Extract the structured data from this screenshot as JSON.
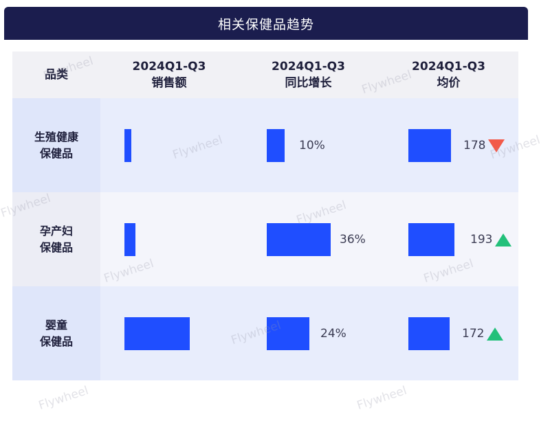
{
  "title": "相关保健品趋势",
  "watermark": "Flywheel",
  "header": {
    "category": "品类",
    "columns": [
      {
        "line1": "2024Q1-Q3",
        "line2": "销售额"
      },
      {
        "line1": "2024Q1-Q3",
        "line2": "同比增长"
      },
      {
        "line1": "2024Q1-Q3",
        "line2": "均价"
      }
    ]
  },
  "rows": [
    {
      "line1": "生殖健康",
      "line2": "保健品",
      "growth_label": "10%",
      "price_label": "178"
    },
    {
      "line1": "孕产妇",
      "line2": "保健品",
      "growth_label": "36%",
      "price_label": "193"
    },
    {
      "line1": "婴童",
      "line2": "保健品",
      "growth_label": "24%",
      "price_label": "172"
    }
  ],
  "chart_data": {
    "type": "table",
    "title": "相关保健品趋势",
    "categories": [
      "生殖健康保健品",
      "孕产妇保健品",
      "婴童保健品"
    ],
    "series": [
      {
        "name": "2024Q1-Q3 销售额",
        "values": [
          0.1,
          0.17,
          1.0
        ],
        "unit": "relative (unlabeled bars)"
      },
      {
        "name": "2024Q1-Q3 同比增长",
        "values": [
          10,
          36,
          24
        ],
        "unit": "%"
      },
      {
        "name": "2024Q1-Q3 均价",
        "values": [
          178,
          193,
          172
        ],
        "trend": [
          "down",
          "up",
          "up"
        ]
      }
    ],
    "colors": {
      "bar": "#1f4eff",
      "up": "#23c07a",
      "down": "#f25a4a",
      "title_bg": "#1b1d4e"
    }
  }
}
